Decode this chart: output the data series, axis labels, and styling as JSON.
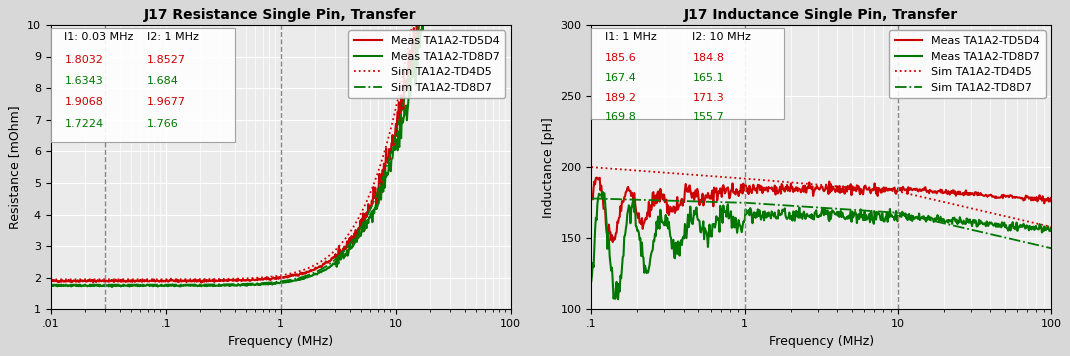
{
  "left_title": "J17 Resistance Single Pin, Transfer",
  "right_title": "J17 Inductance Single Pin, Transfer",
  "left_xlabel": "Frequency (MHz)",
  "right_xlabel": "Frequency (MHz)",
  "left_ylabel": "Resistance [mOhm]",
  "right_ylabel": "Inductance [pH]",
  "left_xlim": [
    0.01,
    100
  ],
  "right_xlim": [
    0.1,
    100
  ],
  "left_ylim": [
    1,
    10
  ],
  "right_ylim": [
    100,
    300
  ],
  "left_vlines": [
    0.03,
    1.0
  ],
  "right_vlines": [
    1.0,
    10.0
  ],
  "left_annotation": {
    "header": [
      "I1: 0.03 MHz",
      "I2: 1 MHz"
    ],
    "rows": [
      {
        "color": "#cc0000",
        "v1": "1.8032",
        "v2": "1.8527"
      },
      {
        "color": "#007700",
        "v1": "1.6343",
        "v2": "1.684"
      },
      {
        "color": "#cc0000",
        "v1": "1.9068",
        "v2": "1.9677"
      },
      {
        "color": "#007700",
        "v1": "1.7224",
        "v2": "1.766"
      }
    ]
  },
  "right_annotation": {
    "header": [
      "I1: 1 MHz",
      "I2: 10 MHz"
    ],
    "rows": [
      {
        "color": "#cc0000",
        "v1": "185.6",
        "v2": "184.8"
      },
      {
        "color": "#007700",
        "v1": "167.4",
        "v2": "165.1"
      },
      {
        "color": "#cc0000",
        "v1": "189.2",
        "v2": "171.3"
      },
      {
        "color": "#007700",
        "v1": "169.8",
        "v2": "155.7"
      }
    ]
  },
  "legend_entries": [
    {
      "label": "Meas TA1A2-TD5D4",
      "color": "#cc0000",
      "ls": "solid",
      "lw": 1.5
    },
    {
      "label": "Meas TA1A2-TD8D7",
      "color": "#007700",
      "ls": "solid",
      "lw": 1.5
    },
    {
      "label": "Sim TA1A2-TD4D5",
      "color": "#cc0000",
      "ls": "dotted",
      "lw": 1.3
    },
    {
      "label": "Sim TA1A2-TD8D7",
      "color": "#007700",
      "ls": "dashdot",
      "lw": 1.3
    }
  ],
  "bg_color": "#ebebeb",
  "grid_color": "#ffffff",
  "title_fontsize": 10,
  "label_fontsize": 9,
  "tick_fontsize": 8,
  "legend_fontsize": 8,
  "annot_fontsize": 8
}
